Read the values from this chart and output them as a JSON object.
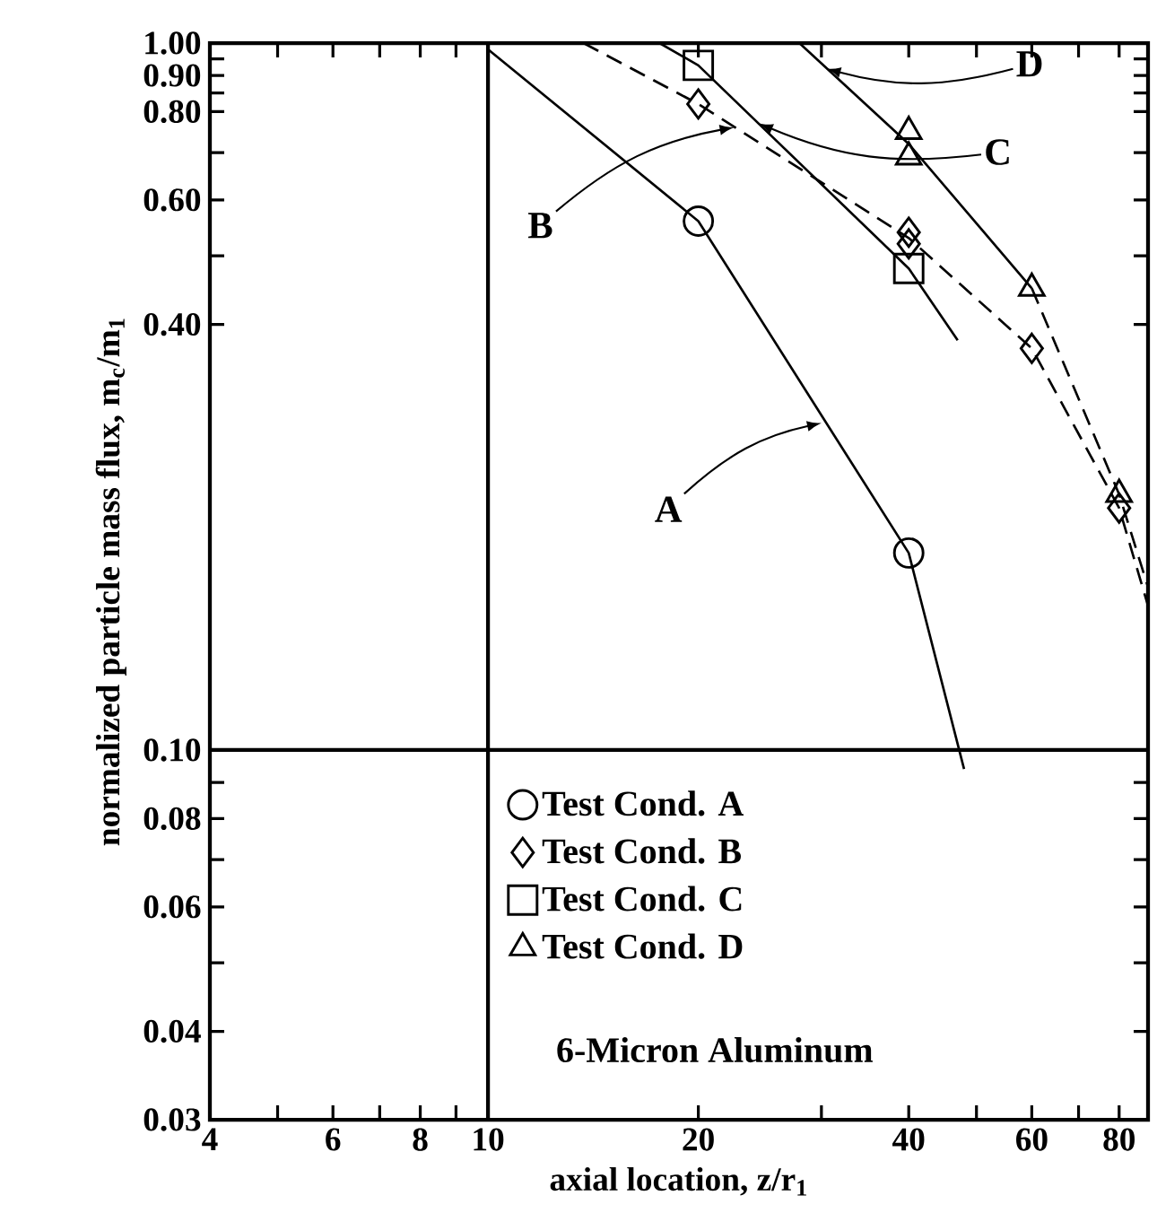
{
  "chart_data": {
    "type": "scatter",
    "xlabel": "axial location, z/r$_{1}$",
    "ylabel": "normalized particle mass flux, m$_{c}$/m$_{1}$",
    "log": "xy",
    "xlim": [
      4,
      88
    ],
    "ylim": [
      0.03,
      1
    ],
    "xticks": [
      4,
      {
        "value": 5,
        "label": null
      },
      6,
      {
        "value": 7,
        "label": null
      },
      8,
      {
        "value": 9,
        "label": null
      },
      10,
      20,
      {
        "value": 30,
        "label": null
      },
      40,
      {
        "value": 50,
        "label": null
      },
      60,
      {
        "value": 70,
        "label": null
      },
      80
    ],
    "yticks": [
      {
        "value": 0.03,
        "label": "0.03"
      },
      0.04,
      {
        "value": 0.05,
        "label": null
      },
      0.06,
      {
        "value": 0.07,
        "label": null
      },
      0.08,
      {
        "value": 0.09,
        "label": null
      },
      {
        "value": 0.1,
        "label": "0.10"
      },
      {
        "value": 0.4,
        "label": "0.40"
      },
      {
        "value": 0.5,
        "label": null
      },
      {
        "value": 0.6,
        "label": "0.60"
      },
      {
        "value": 0.7,
        "label": null
      },
      {
        "value": 0.8,
        "label": "0.80"
      },
      {
        "value": 0.85,
        "label": null
      },
      {
        "value": 0.9,
        "label": "0.90"
      },
      {
        "value": 0.95,
        "label": null
      },
      {
        "value": 1,
        "label": "1.00"
      }
    ],
    "grid": false,
    "legend": "bottom left",
    "ref_lines": [
      {
        "axis": "x",
        "value": 10,
        "color": "#000000"
      },
      {
        "axis": "y",
        "value": 0.1,
        "color": "#000000"
      }
    ],
    "series": [
      {
        "name": "Test Cond.  A",
        "marker": "circle",
        "color": "#000000",
        "x": [
          20,
          40
        ],
        "values": [
          0.56,
          0.19
        ]
      },
      {
        "name": "Test Cond.  B",
        "marker": "diamond",
        "color": "#000000",
        "x": [
          20,
          40,
          40,
          60,
          80
        ],
        "values": [
          0.82,
          0.54,
          0.52,
          0.37,
          0.22
        ]
      },
      {
        "name": "Test Cond.  C",
        "marker": "square",
        "color": "#000000",
        "x": [
          20,
          40
        ],
        "values": [
          0.93,
          0.48
        ]
      },
      {
        "name": "Test Cond.  D",
        "marker": "triangle",
        "color": "#000000",
        "x": [
          40,
          40,
          60,
          80
        ],
        "values": [
          0.75,
          0.69,
          0.45,
          0.23
        ]
      },
      {
        "type": "line",
        "marker": "none",
        "line_style": "solid",
        "color": "#000000",
        "x": [
          10,
          20,
          40,
          48
        ],
        "values": [
          0.98,
          0.56,
          0.19,
          0.094
        ]
      },
      {
        "type": "line",
        "marker": "none",
        "line_style": "dashed",
        "color": "#000000",
        "x": [
          13.7,
          20,
          40,
          60,
          80,
          88
        ],
        "values": [
          1.0,
          0.82,
          0.53,
          0.37,
          0.22,
          0.16
        ]
      },
      {
        "type": "line",
        "marker": "none",
        "line_style": "solid",
        "color": "#000000",
        "x": [
          17.6,
          20,
          40,
          47
        ],
        "values": [
          1.0,
          0.93,
          0.48,
          0.38
        ]
      },
      {
        "type": "line",
        "marker": "none",
        "line_style": "solid",
        "color": "#000000",
        "x": [
          27.9,
          40,
          60
        ],
        "values": [
          1.0,
          0.72,
          0.45
        ]
      },
      {
        "type": "line",
        "marker": "none",
        "line_style": "dashed",
        "color": "#000000",
        "x": [
          60,
          80,
          88
        ],
        "values": [
          0.45,
          0.23,
          0.17
        ]
      }
    ],
    "annotations": [
      {
        "text": "A",
        "x": 30,
        "y": 0.29
      },
      {
        "text": "B",
        "x": 22.5,
        "y": 0.76
      },
      {
        "text": "C",
        "x": 24.4,
        "y": 0.77
      },
      {
        "text": "D",
        "x": 30.5,
        "y": 0.92
      },
      "6-Micron Aluminum"
    ]
  }
}
